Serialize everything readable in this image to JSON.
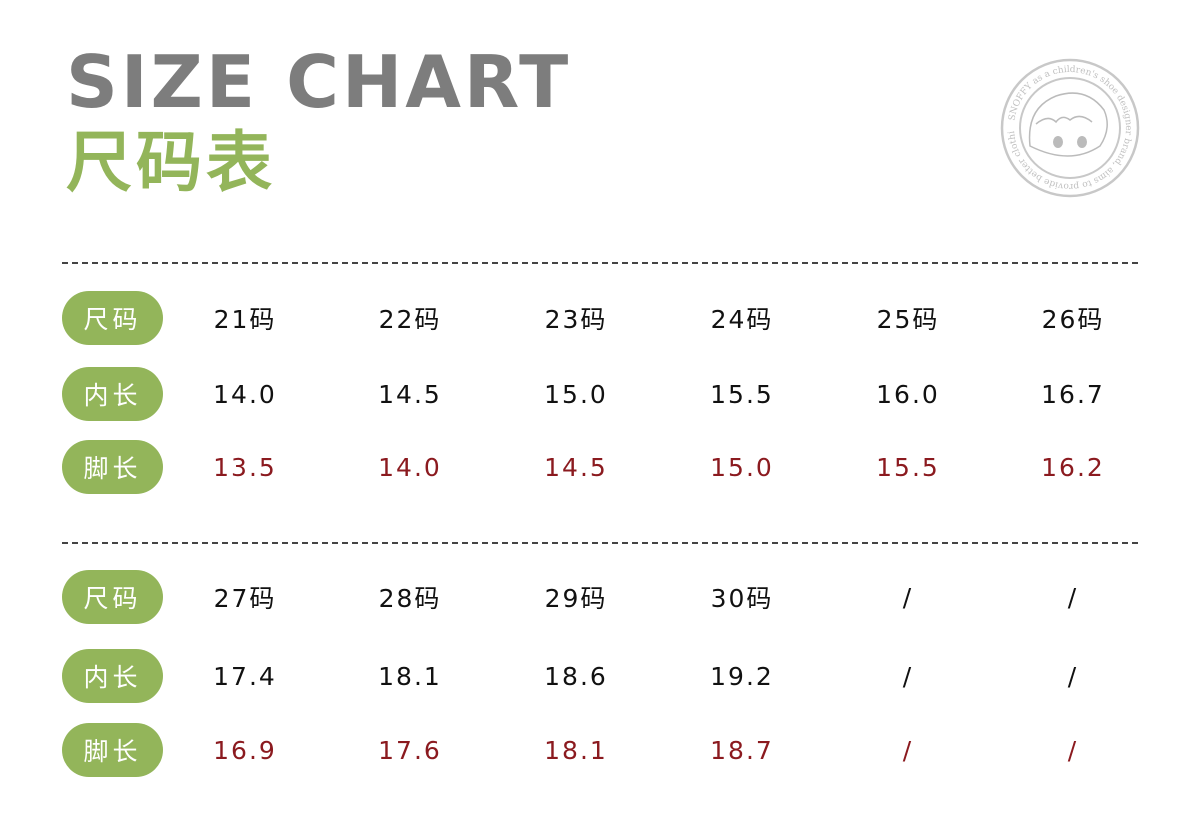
{
  "header": {
    "title_en": "SIZE CHART",
    "title_cn": "尺码表"
  },
  "logo": {
    "text": "SNOFFY as a children's shoe designer brand, aims to provide better clothing",
    "color": "#c8c8c8"
  },
  "colors": {
    "accent": "#93b55a",
    "title": "#7d7d7d",
    "foot_length": "#8b1a1f"
  },
  "tables": [
    {
      "rows": [
        {
          "label": "尺码",
          "values": [
            "21码",
            "22码",
            "23码",
            "24码",
            "25码",
            "26码"
          ],
          "highlight": false
        },
        {
          "label": "内长",
          "values": [
            "14.0",
            "14.5",
            "15.0",
            "15.5",
            "16.0",
            "16.7"
          ],
          "highlight": false
        },
        {
          "label": "脚长",
          "values": [
            "13.5",
            "14.0",
            "14.5",
            "15.0",
            "15.5",
            "16.2"
          ],
          "highlight": true
        }
      ]
    },
    {
      "rows": [
        {
          "label": "尺码",
          "values": [
            "27码",
            "28码",
            "29码",
            "30码",
            "/",
            "/"
          ],
          "highlight": false
        },
        {
          "label": "内长",
          "values": [
            "17.4",
            "18.1",
            "18.6",
            "19.2",
            "/",
            "/"
          ],
          "highlight": false
        },
        {
          "label": "脚长",
          "values": [
            "16.9",
            "17.6",
            "18.1",
            "18.7",
            "/",
            "/"
          ],
          "highlight": true
        }
      ]
    }
  ]
}
